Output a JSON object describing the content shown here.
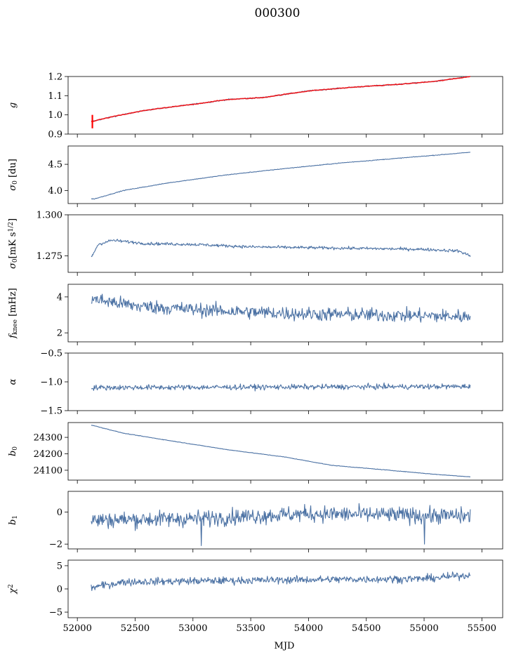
{
  "figure": {
    "title": "000300",
    "xlabel": "MJD"
  },
  "chart_data": {
    "type": "line",
    "title": "000300",
    "xlabel": "MJD",
    "xlim": [
      51920,
      55680
    ],
    "xticks": [
      52000,
      52500,
      53000,
      53500,
      54000,
      54500,
      55000,
      55500
    ],
    "xtick_labels": [
      "52000",
      "52500",
      "53000",
      "53500",
      "54000",
      "54500",
      "55000",
      "55500"
    ],
    "x_range": [
      52120,
      55400
    ],
    "line_color": "#4c72a4",
    "panels": [
      {
        "ylabel": "g",
        "ylim": [
          0.9,
          1.2
        ],
        "yticks": [
          0.9,
          1.0,
          1.1,
          1.2
        ],
        "ytick_labels": [
          "0.9",
          "1.0",
          "1.1",
          "1.2"
        ],
        "trend": [
          [
            52120,
            0.965
          ],
          [
            52300,
            0.99
          ],
          [
            52600,
            1.025
          ],
          [
            53000,
            1.055
          ],
          [
            53300,
            1.08
          ],
          [
            53600,
            1.09
          ],
          [
            54000,
            1.125
          ],
          [
            54400,
            1.145
          ],
          [
            54800,
            1.16
          ],
          [
            55100,
            1.175
          ],
          [
            55400,
            1.2
          ]
        ],
        "noise": 0.003,
        "overlay": {
          "color": "#ff0000",
          "outlier_x": 52130,
          "outlier_range": [
            0.93,
            1.0
          ]
        }
      },
      {
        "ylabel": "σ0 [du]",
        "ylim": [
          3.75,
          4.85
        ],
        "yticks": [
          4.0,
          4.5
        ],
        "ytick_labels": [
          "4.0",
          "4.5"
        ],
        "trend": [
          [
            52150,
            3.84
          ],
          [
            52400,
            4.0
          ],
          [
            52800,
            4.15
          ],
          [
            53300,
            4.3
          ],
          [
            53800,
            4.42
          ],
          [
            54300,
            4.53
          ],
          [
            54800,
            4.62
          ],
          [
            55400,
            4.73
          ]
        ],
        "noise": 0.006
      },
      {
        "ylabel": "σ0[mK s1/2]",
        "ylim": [
          1.265,
          1.3
        ],
        "yticks": [
          1.275,
          1.3
        ],
        "ytick_labels": [
          "1.275",
          "1.300"
        ],
        "trend": [
          [
            52120,
            1.274
          ],
          [
            52180,
            1.282
          ],
          [
            52300,
            1.2845
          ],
          [
            52600,
            1.2825
          ],
          [
            53000,
            1.282
          ],
          [
            53500,
            1.2805
          ],
          [
            54000,
            1.28
          ],
          [
            54500,
            1.2795
          ],
          [
            55000,
            1.279
          ],
          [
            55300,
            1.278
          ],
          [
            55400,
            1.275
          ]
        ],
        "noise": 0.0009
      },
      {
        "ylabel": "fknee [mHz]",
        "ylim": [
          1.5,
          4.7
        ],
        "yticks": [
          2,
          4
        ],
        "ytick_labels": [
          "2",
          "4"
        ],
        "trend": [
          [
            52120,
            3.9
          ],
          [
            52500,
            3.5
          ],
          [
            53000,
            3.3
          ],
          [
            53500,
            3.15
          ],
          [
            54000,
            3.05
          ],
          [
            54500,
            3.0
          ],
          [
            55000,
            2.95
          ],
          [
            55400,
            2.9
          ]
        ],
        "noise": 0.38
      },
      {
        "ylabel": "α",
        "ylim": [
          -1.5,
          -0.5
        ],
        "yticks": [
          -1.5,
          -1.0,
          -0.5
        ],
        "ytick_labels": [
          "−1.5",
          "−1.0",
          "−0.5"
        ],
        "trend": [
          [
            52120,
            -1.1
          ],
          [
            55400,
            -1.08
          ]
        ],
        "noise": 0.045
      },
      {
        "ylabel": "b0",
        "ylim": [
          24040,
          24390
        ],
        "yticks": [
          24100,
          24200,
          24300
        ],
        "ytick_labels": [
          "24100",
          "24200",
          "24300"
        ],
        "trend": [
          [
            52120,
            24375
          ],
          [
            52400,
            24325
          ],
          [
            52800,
            24280
          ],
          [
            53300,
            24225
          ],
          [
            53800,
            24180
          ],
          [
            54200,
            24130
          ],
          [
            54700,
            24100
          ],
          [
            55100,
            24075
          ],
          [
            55400,
            24060
          ]
        ],
        "noise": 1.5
      },
      {
        "ylabel": "b1",
        "ylim": [
          -2.3,
          1.3
        ],
        "yticks": [
          -2,
          0
        ],
        "ytick_labels": [
          "−2",
          "0"
        ],
        "trend": [
          [
            52120,
            -0.5
          ],
          [
            53000,
            -0.4
          ],
          [
            54000,
            -0.1
          ],
          [
            55400,
            -0.25
          ]
        ],
        "noise": 0.5
      },
      {
        "ylabel": "χ2",
        "ylim": [
          -6.2,
          6.2
        ],
        "yticks": [
          -5,
          0,
          5
        ],
        "ytick_labels": [
          "−5",
          "0",
          "5"
        ],
        "trend": [
          [
            52120,
            0.3
          ],
          [
            52400,
            1.5
          ],
          [
            53000,
            1.7
          ],
          [
            54000,
            2.0
          ],
          [
            55000,
            2.2
          ],
          [
            55400,
            3.0
          ]
        ],
        "noise": 0.8
      }
    ]
  }
}
